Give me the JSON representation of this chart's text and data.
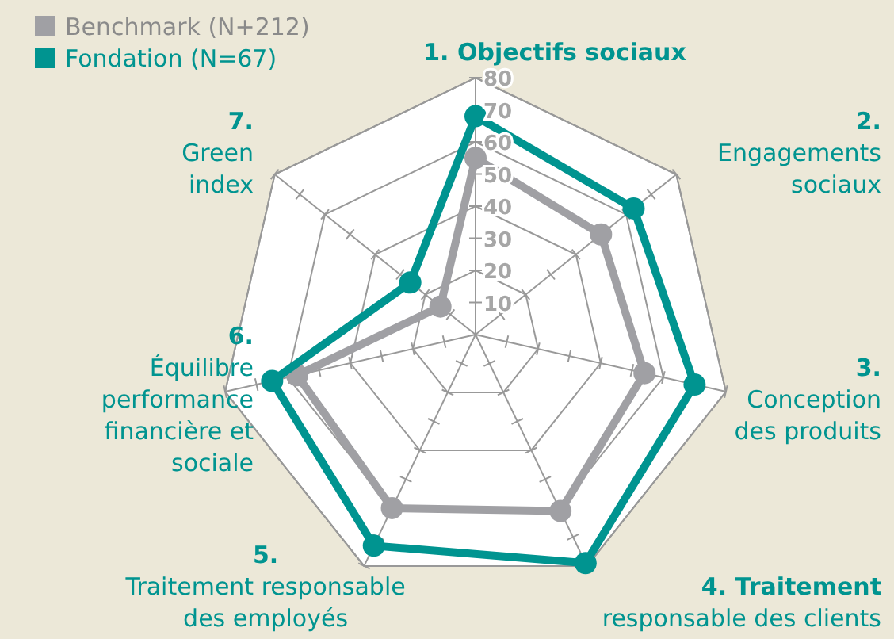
{
  "chart_data": {
    "type": "radar",
    "categories": [
      "1. Objectifs sociaux",
      "2.\nEngagements\nsociaux",
      "3.\nConception\ndes produits",
      "4. Traitement\nresponsable des clients",
      "5.\nTraitement responsable\ndes employés",
      "6.\nÉquilibre\nperformance\nfinancière et\nsociale",
      "7.\nGreen\nindex"
    ],
    "series": [
      {
        "name": "Benchmark (N+212)",
        "color": "#a0a0a4",
        "values": [
          55,
          50,
          54,
          61,
          60,
          57,
          14
        ]
      },
      {
        "name": "Fondation (N=67)",
        "color": "#009490",
        "values": [
          68,
          63,
          70,
          79,
          73,
          65,
          26
        ]
      }
    ],
    "ylim": [
      0,
      80
    ],
    "yticks": [
      10,
      20,
      30,
      40,
      50,
      60,
      70,
      80
    ],
    "grid": true,
    "legend": "top left",
    "marker": "circle"
  }
}
